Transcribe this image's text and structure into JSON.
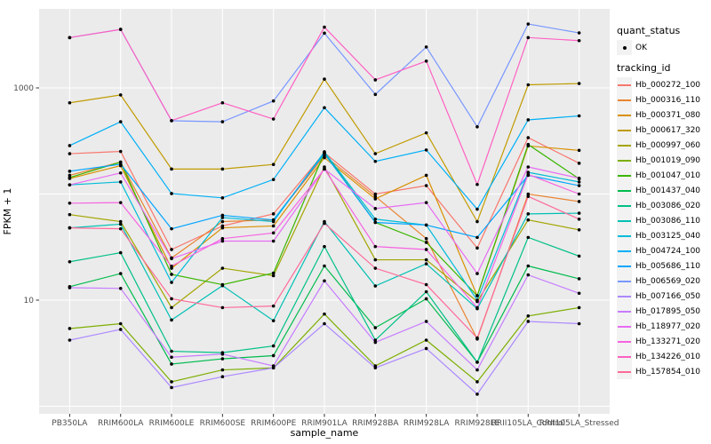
{
  "chart_data": {
    "type": "line",
    "title": "",
    "xlabel": "sample_name",
    "ylabel": "FPKM + 1",
    "y_scale": "log10",
    "y_tick_labels": [
      "1000",
      "10"
    ],
    "y_tick_values": [
      1000,
      10
    ],
    "y_gridline_values": [
      1,
      10,
      100,
      1000
    ],
    "ylim": [
      0.95,
      5500
    ],
    "grid": "on",
    "legend_position": "right",
    "panel_bg": "#EBEBEB",
    "grid_color": "#FFFFFF",
    "key_bg": "#F2F2F2",
    "tick_color": "#333333",
    "axis_text_color": "#4D4D4D",
    "point_color": "#000000",
    "categories": [
      "PB350LA",
      "RRIM600LA",
      "RRIM600LE",
      "RRIM600SE",
      "RRIM600PE",
      "RRIM901LA",
      "RRIM928BA",
      "RRIM928LA",
      "RRIM928LE",
      "RRII105LA_Control",
      "RRII105LA_Stressed"
    ],
    "legend": {
      "quant_status": {
        "title": "quant_status",
        "items": [
          "OK"
        ]
      },
      "tracking_id": {
        "title": "tracking_id"
      }
    },
    "series": [
      {
        "name": "Hb_000272_100",
        "color": "#F8766D",
        "values": [
          240,
          252,
          30,
          50,
          65,
          245,
          100,
          120,
          31,
          340,
          195
        ]
      },
      {
        "name": "Hb_000316_110",
        "color": "#EA8331",
        "values": [
          150,
          200,
          25,
          55,
          57,
          230,
          95,
          38,
          4.3,
          100,
          85
        ]
      },
      {
        "name": "Hb_000371_080",
        "color": "#D89000",
        "values": [
          140,
          185,
          20,
          48,
          50,
          220,
          90,
          150,
          11,
          284,
          258
        ]
      },
      {
        "name": "Hb_000617_320",
        "color": "#C09B00",
        "values": [
          724,
          859,
          172,
          172,
          190,
          1211,
          240,
          377,
          55,
          1070,
          1100
        ]
      },
      {
        "name": "Hb_000997_060",
        "color": "#A3A500",
        "values": [
          64,
          55,
          8.5,
          20,
          17,
          180,
          24,
          24,
          9.7,
          57,
          46
        ]
      },
      {
        "name": "Hb_001019_090",
        "color": "#7CAE00",
        "values": [
          5.4,
          6.0,
          1.7,
          2.2,
          2.3,
          7.4,
          2.4,
          4.2,
          1.7,
          7.1,
          8.5
        ]
      },
      {
        "name": "Hb_001047_010",
        "color": "#39B600",
        "values": [
          143,
          200,
          17.5,
          14,
          18,
          245,
          54,
          35,
          11,
          293,
          139
        ]
      },
      {
        "name": "Hb_001437_040",
        "color": "#00BB4E",
        "values": [
          13.4,
          17.8,
          2.5,
          2.8,
          3.0,
          21,
          5.5,
          10.3,
          2.6,
          21,
          15.9
        ]
      },
      {
        "name": "Hb_003086_020",
        "color": "#00C087",
        "values": [
          23,
          28,
          3.3,
          3.2,
          3.7,
          32,
          4.2,
          12,
          2.6,
          39,
          26
        ]
      },
      {
        "name": "Hb_003086_110",
        "color": "#00C0B4",
        "values": [
          48,
          52,
          6.5,
          13.7,
          6.4,
          55,
          13.6,
          22,
          8.3,
          65,
          66
        ]
      },
      {
        "name": "Hb_003125_040",
        "color": "#00BCD8",
        "values": [
          122,
          130,
          14.7,
          60,
          55,
          250,
          58,
          51,
          10,
          160,
          130
        ]
      },
      {
        "name": "Hb_004724_100",
        "color": "#00B0F6",
        "values": [
          286,
          480,
          101,
          92,
          137,
          651,
          203,
          260,
          72,
          500,
          545
        ]
      },
      {
        "name": "Hb_005686_110",
        "color": "#00A5FF",
        "values": [
          164,
          191,
          47,
          63,
          57,
          240,
          54,
          51,
          39,
          150,
          120
        ]
      },
      {
        "name": "Hb_006569_020",
        "color": "#7997FF",
        "values": [
          2980,
          3560,
          490,
          480,
          753,
          3280,
          868,
          2430,
          430,
          4000,
          3300
        ]
      },
      {
        "name": "Hb_007166_050",
        "color": "#AC88FF",
        "values": [
          4.2,
          5.3,
          1.5,
          1.9,
          2.3,
          6.0,
          2.3,
          3.5,
          1.3,
          6.3,
          6.0
        ]
      },
      {
        "name": "Hb_017895_050",
        "color": "#C77CFF",
        "values": [
          13.1,
          12.9,
          2.9,
          3.1,
          2.4,
          15.2,
          4.0,
          6.3,
          2.2,
          17.3,
          11.6
        ]
      },
      {
        "name": "Hb_118977_020",
        "color": "#E76BF3",
        "values": [
          122,
          158,
          24.6,
          36,
          36,
          172,
          73,
          83,
          17.8,
          180,
          141
        ]
      },
      {
        "name": "Hb_133271_020",
        "color": "#F763E1",
        "values": [
          82,
          83,
          20.9,
          38,
          43,
          172,
          32,
          30,
          8.5,
          153,
          100
        ]
      },
      {
        "name": "Hb_134226_010",
        "color": "#FF61C3",
        "values": [
          2980,
          3560,
          492,
          724,
          509,
          3740,
          1190,
          1790,
          123,
          2980,
          2790
        ]
      },
      {
        "name": "Hb_157854_010",
        "color": "#FF6A99",
        "values": [
          48,
          47,
          10.3,
          8.5,
          8.8,
          53,
          20,
          14,
          4.4,
          95,
          58
        ]
      }
    ]
  }
}
